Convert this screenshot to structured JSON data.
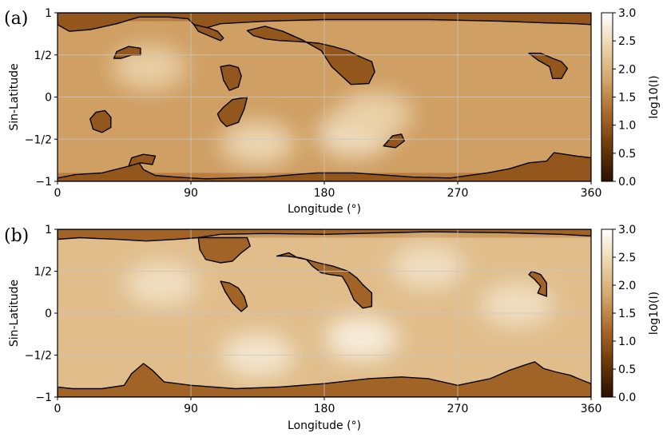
{
  "chart_data": [
    {
      "type": "heatmap",
      "panel_label": "(a)",
      "xlabel": "Longitude (°)",
      "ylabel": "Sin-Latitude",
      "x_ticks": [
        0,
        90,
        180,
        270,
        360
      ],
      "x_tick_labels": [
        "0",
        "90",
        "180",
        "270",
        "360"
      ],
      "y_ticks": [
        1,
        0.5,
        0,
        -0.5,
        -1
      ],
      "y_tick_labels": [
        "1",
        "1/2",
        "0",
        "−1/2",
        "−1"
      ],
      "xlim": [
        0,
        360
      ],
      "ylim": [
        -1,
        1
      ],
      "grid": true,
      "colorbar": {
        "label": "log10(I)",
        "range": [
          0,
          3
        ],
        "ticks": [
          0,
          0.5,
          1,
          1.5,
          2,
          2.5,
          3
        ],
        "tick_labels": [
          "0.0",
          "0.5",
          "1.0",
          "1.5",
          "2.0",
          "2.5",
          "3.0"
        ],
        "colors": [
          "#2a0f00",
          "#6b3808",
          "#a8682a",
          "#d3a56a",
          "#ecd4ac",
          "#ffffff"
        ]
      },
      "bright_regions": [
        {
          "lon": 62,
          "slat": 0.35,
          "level": 2.4
        },
        {
          "lon": 135,
          "slat": -0.55,
          "level": 2.5
        },
        {
          "lon": 200,
          "slat": -0.45,
          "level": 2.6
        },
        {
          "lon": 215,
          "slat": -0.2,
          "level": 2.4
        }
      ],
      "coronal_holes": [
        {
          "name": "north-polar",
          "points": [
            [
              0,
              0.86
            ],
            [
              8,
              0.78
            ],
            [
              22,
              0.8
            ],
            [
              40,
              0.87
            ],
            [
              55,
              0.95
            ],
            [
              75,
              0.95
            ],
            [
              88,
              0.93
            ],
            [
              92,
              0.86
            ],
            [
              100,
              0.82
            ],
            [
              110,
              0.87
            ],
            [
              140,
              0.9
            ],
            [
              180,
              0.92
            ],
            [
              250,
              0.92
            ],
            [
              300,
              0.9
            ],
            [
              330,
              0.88
            ],
            [
              350,
              0.87
            ],
            [
              360,
              0.86
            ],
            [
              360,
              1
            ],
            [
              0,
              1
            ]
          ]
        },
        {
          "name": "n-lon-100",
          "points": [
            [
              92,
              0.86
            ],
            [
              95,
              0.78
            ],
            [
              103,
              0.72
            ],
            [
              110,
              0.67
            ],
            [
              112,
              0.7
            ],
            [
              108,
              0.78
            ],
            [
              102,
              0.82
            ]
          ]
        },
        {
          "name": "n-lon-45",
          "points": [
            [
              38,
              0.46
            ],
            [
              40,
              0.54
            ],
            [
              48,
              0.6
            ],
            [
              56,
              0.58
            ],
            [
              56,
              0.5
            ],
            [
              50,
              0.5
            ],
            [
              43,
              0.46
            ]
          ]
        },
        {
          "name": "central-north",
          "points": [
            [
              128,
              0.79
            ],
            [
              140,
              0.84
            ],
            [
              152,
              0.78
            ],
            [
              165,
              0.68
            ],
            [
              178,
              0.55
            ],
            [
              185,
              0.36
            ],
            [
              198,
              0.15
            ],
            [
              210,
              0.16
            ],
            [
              214,
              0.3
            ],
            [
              212,
              0.42
            ],
            [
              204,
              0.48
            ],
            [
              196,
              0.55
            ],
            [
              186,
              0.6
            ],
            [
              176,
              0.64
            ],
            [
              162,
              0.66
            ],
            [
              150,
              0.67
            ],
            [
              140,
              0.69
            ],
            [
              132,
              0.73
            ]
          ]
        },
        {
          "name": "n-lon-118",
          "points": [
            [
              110,
              0.36
            ],
            [
              112,
              0.2
            ],
            [
              116,
              0.08
            ],
            [
              122,
              0.12
            ],
            [
              124,
              0.25
            ],
            [
              122,
              0.35
            ],
            [
              116,
              0.38
            ]
          ]
        },
        {
          "name": "mid-lon-118",
          "points": [
            [
              108,
              -0.2
            ],
            [
              112,
              -0.12
            ],
            [
              118,
              -0.03
            ],
            [
              128,
              0.0
            ],
            [
              126,
              -0.14
            ],
            [
              122,
              -0.3
            ],
            [
              114,
              -0.35
            ],
            [
              110,
              -0.28
            ]
          ]
        },
        {
          "name": "mid-lon-28",
          "points": [
            [
              22,
              -0.26
            ],
            [
              26,
              -0.18
            ],
            [
              32,
              -0.16
            ],
            [
              36,
              -0.24
            ],
            [
              36,
              -0.36
            ],
            [
              30,
              -0.42
            ],
            [
              24,
              -0.38
            ]
          ]
        },
        {
          "name": "s-lon-222",
          "points": [
            [
              220,
              -0.58
            ],
            [
              226,
              -0.46
            ],
            [
              232,
              -0.44
            ],
            [
              234,
              -0.52
            ],
            [
              228,
              -0.6
            ]
          ]
        },
        {
          "name": "n-lon-333",
          "points": [
            [
              318,
              0.52
            ],
            [
              324,
              0.44
            ],
            [
              332,
              0.36
            ],
            [
              334,
              0.22
            ],
            [
              340,
              0.22
            ],
            [
              344,
              0.34
            ],
            [
              340,
              0.42
            ],
            [
              334,
              0.46
            ],
            [
              326,
              0.52
            ]
          ]
        },
        {
          "name": "south-polar",
          "points": [
            [
              0,
              -0.96
            ],
            [
              12,
              -0.92
            ],
            [
              30,
              -0.9
            ],
            [
              48,
              -0.82
            ],
            [
              55,
              -0.78
            ],
            [
              58,
              -0.86
            ],
            [
              66,
              -0.93
            ],
            [
              80,
              -0.95
            ],
            [
              100,
              -0.97
            ],
            [
              140,
              -0.95
            ],
            [
              175,
              -0.9
            ],
            [
              200,
              -0.9
            ],
            [
              240,
              -0.95
            ],
            [
              265,
              -0.96
            ],
            [
              290,
              -0.9
            ],
            [
              305,
              -0.85
            ],
            [
              318,
              -0.78
            ],
            [
              330,
              -0.76
            ],
            [
              335,
              -0.66
            ],
            [
              350,
              -0.7
            ],
            [
              360,
              -0.72
            ],
            [
              360,
              -1
            ],
            [
              0,
              -1
            ]
          ]
        },
        {
          "name": "s-lon-55",
          "points": [
            [
              48,
              -0.82
            ],
            [
              50,
              -0.72
            ],
            [
              58,
              -0.68
            ],
            [
              66,
              -0.7
            ],
            [
              64,
              -0.8
            ],
            [
              56,
              -0.78
            ]
          ]
        }
      ]
    },
    {
      "type": "heatmap",
      "panel_label": "(b)",
      "xlabel": "Longitude (°)",
      "ylabel": "Sin-Latitude",
      "x_ticks": [
        0,
        90,
        180,
        270,
        360
      ],
      "x_tick_labels": [
        "0",
        "90",
        "180",
        "270",
        "360"
      ],
      "y_ticks": [
        1,
        0.5,
        0,
        -0.5,
        -1
      ],
      "y_tick_labels": [
        "1",
        "1/2",
        "0",
        "−1/2",
        "−1"
      ],
      "xlim": [
        0,
        360
      ],
      "ylim": [
        -1,
        1
      ],
      "grid": true,
      "colorbar": {
        "label": "log10(I)",
        "range": [
          0,
          3
        ],
        "ticks": [
          0,
          0.5,
          1,
          1.5,
          2,
          2.5,
          3
        ],
        "tick_labels": [
          "0.0",
          "0.5",
          "1.0",
          "1.5",
          "2.0",
          "2.5",
          "3.0"
        ],
        "colors": [
          "#2a0f00",
          "#6b3808",
          "#a8682a",
          "#d3a56a",
          "#ecd4ac",
          "#ffffff"
        ]
      },
      "bright_regions": [
        {
          "lon": 70,
          "slat": 0.35,
          "level": 2.6
        },
        {
          "lon": 135,
          "slat": -0.5,
          "level": 2.7
        },
        {
          "lon": 205,
          "slat": -0.3,
          "level": 2.8
        },
        {
          "lon": 250,
          "slat": 0.55,
          "level": 2.6
        },
        {
          "lon": 310,
          "slat": 0.1,
          "level": 2.6
        }
      ],
      "coronal_holes": [
        {
          "name": "north-polar",
          "points": [
            [
              0,
              0.88
            ],
            [
              15,
              0.9
            ],
            [
              40,
              0.88
            ],
            [
              60,
              0.86
            ],
            [
              80,
              0.88
            ],
            [
              95,
              0.9
            ],
            [
              110,
              0.94
            ],
            [
              140,
              0.95
            ],
            [
              180,
              0.94
            ],
            [
              250,
              0.97
            ],
            [
              300,
              0.96
            ],
            [
              340,
              0.94
            ],
            [
              360,
              0.92
            ],
            [
              360,
              1
            ],
            [
              0,
              1
            ]
          ]
        },
        {
          "name": "n-lon-110",
          "points": [
            [
              95,
              0.9
            ],
            [
              96,
              0.76
            ],
            [
              100,
              0.64
            ],
            [
              110,
              0.6
            ],
            [
              118,
              0.62
            ],
            [
              124,
              0.72
            ],
            [
              130,
              0.8
            ],
            [
              128,
              0.9
            ]
          ]
        },
        {
          "name": "n-lon-118",
          "points": [
            [
              110,
              0.38
            ],
            [
              113,
              0.26
            ],
            [
              118,
              0.12
            ],
            [
              124,
              0.02
            ],
            [
              128,
              0.08
            ],
            [
              126,
              0.2
            ],
            [
              122,
              0.3
            ],
            [
              116,
              0.36
            ]
          ]
        },
        {
          "name": "central-north",
          "points": [
            [
              148,
              0.68
            ],
            [
              156,
              0.72
            ],
            [
              162,
              0.66
            ],
            [
              168,
              0.64
            ],
            [
              172,
              0.56
            ],
            [
              178,
              0.48
            ],
            [
              184,
              0.46
            ],
            [
              192,
              0.44
            ],
            [
              196,
              0.32
            ],
            [
              200,
              0.16
            ],
            [
              206,
              0.06
            ],
            [
              212,
              0.08
            ],
            [
              212,
              0.24
            ],
            [
              206,
              0.34
            ],
            [
              202,
              0.42
            ],
            [
              196,
              0.5
            ],
            [
              186,
              0.56
            ],
            [
              176,
              0.6
            ],
            [
              164,
              0.66
            ],
            [
              154,
              0.68
            ]
          ]
        },
        {
          "name": "n-lon-322",
          "points": [
            [
              318,
              0.46
            ],
            [
              322,
              0.4
            ],
            [
              326,
              0.32
            ],
            [
              324,
              0.24
            ],
            [
              330,
              0.2
            ],
            [
              330,
              0.36
            ],
            [
              326,
              0.46
            ],
            [
              320,
              0.5
            ]
          ]
        },
        {
          "name": "south-polar",
          "points": [
            [
              0,
              -0.88
            ],
            [
              10,
              -0.9
            ],
            [
              30,
              -0.9
            ],
            [
              45,
              -0.86
            ],
            [
              50,
              -0.72
            ],
            [
              58,
              -0.6
            ],
            [
              64,
              -0.68
            ],
            [
              72,
              -0.82
            ],
            [
              90,
              -0.86
            ],
            [
              120,
              -0.9
            ],
            [
              150,
              -0.88
            ],
            [
              180,
              -0.84
            ],
            [
              210,
              -0.78
            ],
            [
              232,
              -0.76
            ],
            [
              250,
              -0.78
            ],
            [
              270,
              -0.86
            ],
            [
              292,
              -0.78
            ],
            [
              305,
              -0.68
            ],
            [
              315,
              -0.62
            ],
            [
              322,
              -0.58
            ],
            [
              328,
              -0.66
            ],
            [
              336,
              -0.7
            ],
            [
              346,
              -0.74
            ],
            [
              354,
              -0.8
            ],
            [
              360,
              -0.84
            ],
            [
              360,
              -1
            ],
            [
              0,
              -1
            ]
          ]
        }
      ]
    }
  ]
}
